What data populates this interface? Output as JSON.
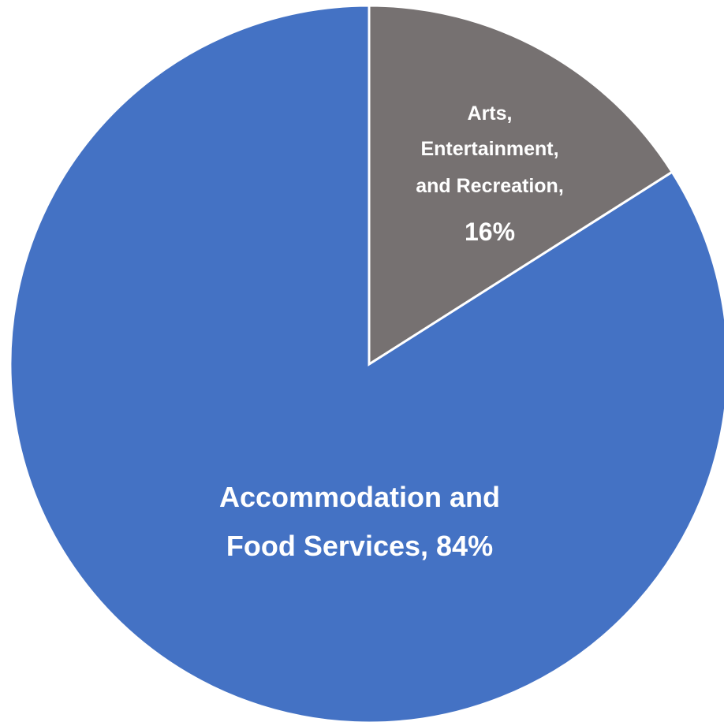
{
  "chart_data": {
    "type": "pie",
    "slices": [
      {
        "label": "Accommodation and Food Services",
        "value": 84,
        "unit": "%",
        "color": "#4472C4",
        "label_lines": [
          "Accommodation and",
          "Food Services, 84%"
        ]
      },
      {
        "label": "Arts, Entertainment, and Recreation",
        "value": 16,
        "unit": "%",
        "color": "#767171",
        "label_lines": [
          "Arts,",
          "Entertainment,",
          "and Recreation,",
          "16%"
        ]
      }
    ],
    "start_angle": "12 o'clock",
    "direction": "clockwise",
    "legend": "none"
  }
}
